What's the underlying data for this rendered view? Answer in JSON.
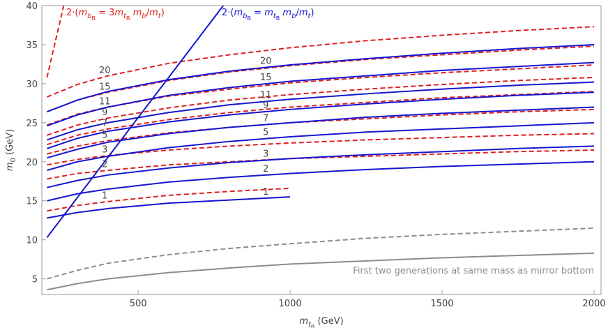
{
  "chart_data": {
    "type": "line",
    "x": [
      200,
      300,
      400,
      600,
      800,
      1000,
      1250,
      1500,
      1750,
      2000
    ],
    "xlim": [
      183,
      2023
    ],
    "ylim": [
      3,
      40
    ],
    "xticks": [
      500,
      1000,
      1500,
      2000
    ],
    "yticks": [
      5,
      10,
      15,
      20,
      25,
      30,
      35,
      40
    ],
    "xlabel": [
      [
        "m",
        "i"
      ],
      [
        "t",
        "s"
      ],
      [
        "B",
        "ss"
      ],
      [
        " (GeV)",
        "n"
      ]
    ],
    "ylabel": [
      [
        "m",
        "i"
      ],
      [
        "0",
        "s0"
      ],
      [
        " (GeV)",
        "n"
      ]
    ],
    "annotations": [
      {
        "color": "#e02020",
        "text": [
          [
            "2·(",
            "n"
          ],
          [
            "m",
            "i"
          ],
          [
            "b",
            "s"
          ],
          [
            "B",
            "ss"
          ],
          [
            " = 3",
            "n"
          ],
          [
            "m",
            "i"
          ],
          [
            "t",
            "s"
          ],
          [
            "B",
            "ss"
          ],
          [
            " ",
            "n"
          ],
          [
            "m",
            "i"
          ],
          [
            "b",
            "s"
          ],
          [
            "/",
            "n"
          ],
          [
            "m",
            "i"
          ],
          [
            "t",
            "s"
          ],
          [
            ")",
            "n"
          ]
        ]
      },
      {
        "color": "#1515d0",
        "text": [
          [
            "2·(",
            "n"
          ],
          [
            "m",
            "i"
          ],
          [
            "b",
            "s"
          ],
          [
            "B",
            "ss"
          ],
          [
            " = ",
            "n"
          ],
          [
            "m",
            "i"
          ],
          [
            "t",
            "s"
          ],
          [
            "B",
            "ss"
          ],
          [
            " ",
            "n"
          ],
          [
            "m",
            "i"
          ],
          [
            "b",
            "s"
          ],
          [
            "/",
            "n"
          ],
          [
            "m",
            "i"
          ],
          [
            "t",
            "s"
          ],
          [
            ")",
            "n"
          ]
        ]
      },
      {
        "color": "#8c8c8c",
        "text": [
          [
            "First two generations at same mass as mirror bottom",
            "n"
          ]
        ]
      }
    ],
    "series": [
      {
        "name": "20",
        "color": "#e02020",
        "dash": true,
        "values": [
          28.3,
          29.9,
          31.0,
          32.6,
          33.7,
          34.6,
          35.5,
          36.2,
          36.8,
          37.3
        ]
      },
      {
        "name": "15",
        "color": "#e02020",
        "dash": true,
        "values": [
          26.4,
          27.9,
          28.9,
          30.4,
          31.5,
          32.3,
          33.1,
          33.7,
          34.3,
          34.8
        ]
      },
      {
        "name": "11",
        "color": "#e02020",
        "dash": true,
        "values": [
          24.7,
          26.1,
          27.0,
          28.4,
          29.3,
          30.1,
          30.8,
          31.4,
          31.9,
          32.4
        ]
      },
      {
        "name": "9",
        "color": "#e02020",
        "dash": true,
        "values": [
          23.4,
          24.7,
          25.6,
          26.9,
          27.9,
          28.6,
          29.3,
          29.9,
          30.4,
          30.8
        ]
      },
      {
        "name": "7",
        "color": "#e02020",
        "dash": true,
        "values": [
          22.2,
          23.4,
          24.2,
          25.4,
          26.3,
          27.0,
          27.6,
          28.2,
          28.6,
          29.0
        ]
      },
      {
        "name": "5",
        "color": "#e02020",
        "dash": true,
        "values": [
          21.0,
          22.0,
          22.7,
          23.7,
          24.4,
          25.0,
          25.5,
          26.0,
          26.4,
          26.7
        ]
      },
      {
        "name": "3",
        "color": "#e02020",
        "dash": true,
        "values": [
          19.6,
          20.3,
          20.8,
          21.5,
          22.0,
          22.4,
          22.8,
          23.1,
          23.4,
          23.6
        ]
      },
      {
        "name": "2",
        "color": "#e02020",
        "dash": true,
        "values": [
          17.8,
          18.5,
          18.9,
          19.6,
          20.0,
          20.4,
          20.7,
          21.0,
          21.3,
          21.5
        ]
      },
      {
        "name": "1",
        "color": "#e02020",
        "dash": true,
        "values": [
          13.7,
          14.4,
          14.9,
          15.7,
          16.2,
          16.6,
          null,
          null,
          null,
          null
        ]
      },
      {
        "name": "20",
        "color": "#1515d0",
        "values": [
          26.4,
          27.9,
          29.0,
          30.5,
          31.6,
          32.4,
          33.2,
          33.9,
          34.5,
          35.0
        ]
      },
      {
        "name": "15",
        "color": "#1515d0",
        "values": [
          24.6,
          26.0,
          27.0,
          28.5,
          29.5,
          30.3,
          31.0,
          31.7,
          32.2,
          32.7
        ]
      },
      {
        "name": "11",
        "color": "#1515d0",
        "values": [
          22.8,
          24.1,
          25.0,
          26.3,
          27.3,
          28.0,
          28.7,
          29.3,
          29.8,
          30.2
        ]
      },
      {
        "name": "9",
        "color": "#1515d0",
        "values": [
          21.7,
          23.0,
          23.9,
          25.1,
          26.0,
          26.7,
          27.4,
          28.0,
          28.5,
          28.9
        ]
      },
      {
        "name": "7",
        "color": "#1515d0",
        "values": [
          20.5,
          21.6,
          22.5,
          23.6,
          24.4,
          25.0,
          25.7,
          26.2,
          26.6,
          27.0
        ]
      },
      {
        "name": "5",
        "color": "#1515d0",
        "values": [
          18.9,
          20.0,
          20.7,
          21.8,
          22.6,
          23.2,
          23.8,
          24.2,
          24.6,
          25.0
        ]
      },
      {
        "name": "3",
        "color": "#1515d0",
        "values": [
          16.7,
          17.6,
          18.3,
          19.2,
          19.9,
          20.4,
          20.9,
          21.3,
          21.7,
          22.0
        ]
      },
      {
        "name": "2",
        "color": "#1515d0",
        "values": [
          15.0,
          15.9,
          16.5,
          17.4,
          18.0,
          18.5,
          19.0,
          19.4,
          19.7,
          20.0
        ]
      },
      {
        "name": "1",
        "color": "#1515d0",
        "values": [
          12.8,
          13.5,
          14.0,
          14.7,
          15.1,
          15.5,
          null,
          null,
          null,
          null
        ]
      },
      {
        "color": "#8c8c8c",
        "dash": true,
        "values": [
          5.0,
          6.1,
          7.0,
          8.1,
          8.9,
          9.5,
          10.2,
          10.7,
          11.1,
          11.5
        ]
      },
      {
        "color": "#8c8c8c",
        "values": [
          3.6,
          4.4,
          5.0,
          5.8,
          6.4,
          6.9,
          7.3,
          7.7,
          8.0,
          8.3
        ]
      },
      {
        "color": "#1515d0",
        "x": [
          200,
          780
        ],
        "values": [
          10.3,
          40
        ]
      },
      {
        "color": "#e02020",
        "dash": true,
        "x": [
          200,
          255
        ],
        "values": [
          30.8,
          40
        ]
      }
    ]
  }
}
